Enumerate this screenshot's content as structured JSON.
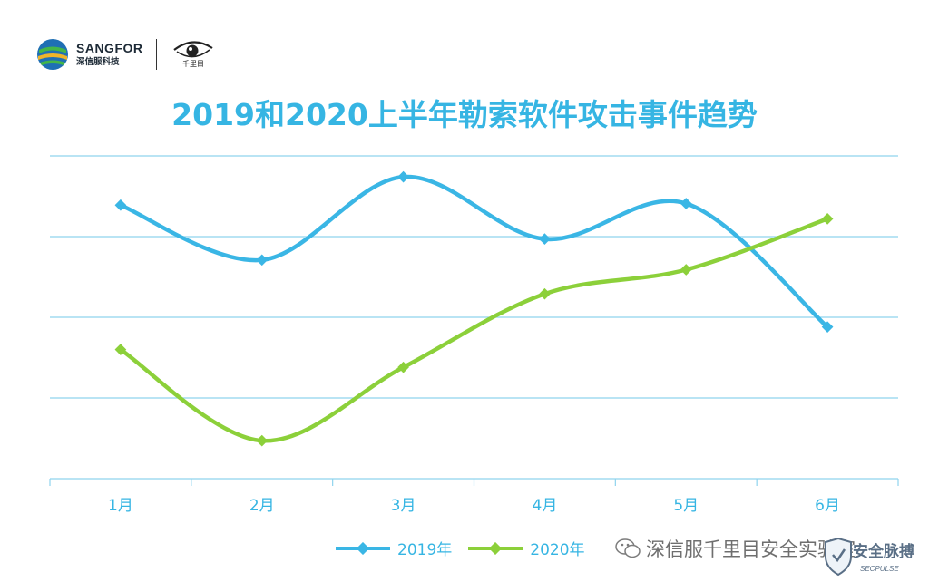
{
  "logos": {
    "brand_name": "SANGFOR",
    "brand_sub": "深信服科技",
    "eye_logo_text": "千里目"
  },
  "chart_data": {
    "type": "line",
    "title": "2019和2020上半年勒索软件攻击事件趋势",
    "categories": [
      "1月",
      "2月",
      "3月",
      "4月",
      "5月",
      "6月"
    ],
    "ylim": [
      0,
      4
    ],
    "grid": true,
    "yticks_labeled": false,
    "legend_position": "bottom",
    "series": [
      {
        "name": "2019年",
        "color": "#3ab6e5",
        "values": [
          3.39,
          2.71,
          3.74,
          2.97,
          3.41,
          1.88
        ]
      },
      {
        "name": "2020年",
        "color": "#8cd03a",
        "values": [
          1.6,
          0.47,
          1.38,
          2.29,
          2.59,
          3.22
        ]
      }
    ]
  },
  "watermark": {
    "text": "深信服千里目安全实验室",
    "badge_main": "安全脉搏",
    "badge_sub": "SECPULSE"
  }
}
